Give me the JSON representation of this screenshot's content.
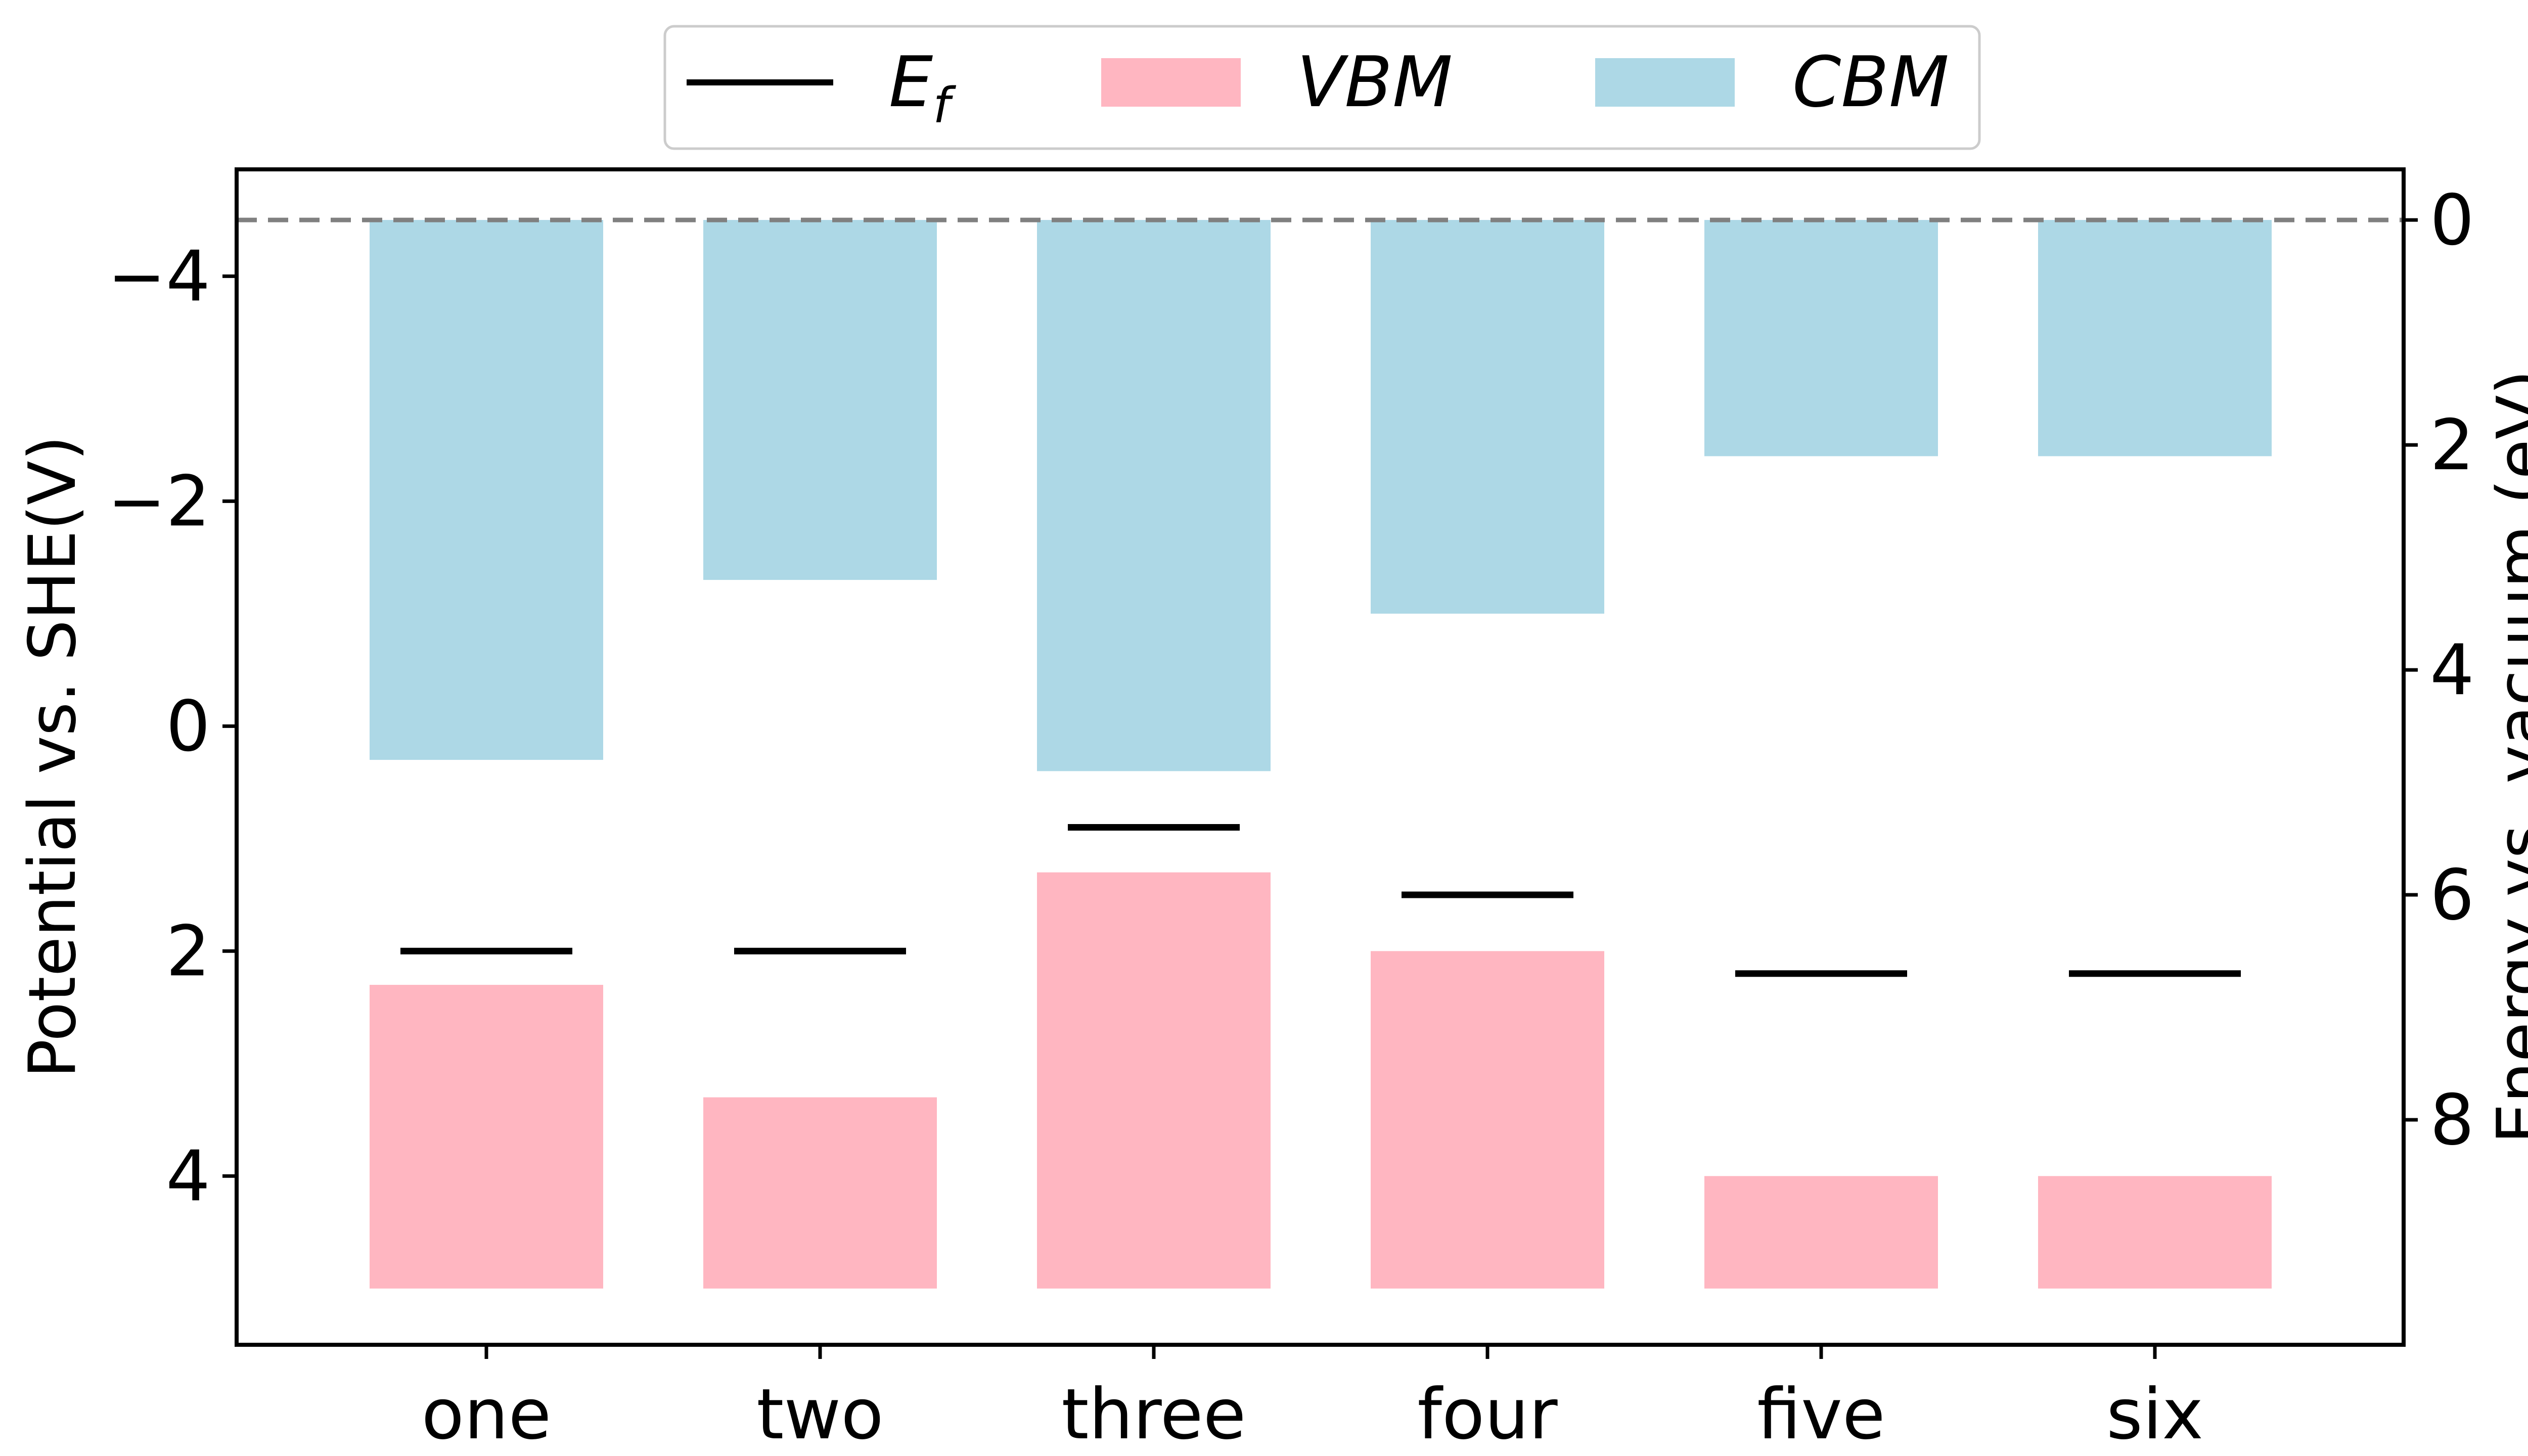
{
  "chart_data": {
    "type": "bar",
    "categories": [
      "one",
      "two",
      "three",
      "four",
      "five",
      "six"
    ],
    "series": [
      {
        "name": "CBM",
        "color": "#add8e6",
        "bottom": [
          0.3,
          -1.3,
          0.4,
          -1.0,
          -2.4,
          -2.4
        ],
        "top": -4.5
      },
      {
        "name": "VBM",
        "color": "#ffb6c1",
        "top": [
          2.3,
          3.3,
          1.3,
          2.0,
          4.0,
          4.0
        ],
        "bottom": 5.0
      },
      {
        "name": "E_f",
        "color": "#000000",
        "values": [
          2.0,
          2.0,
          0.9,
          1.5,
          2.2,
          2.2
        ]
      }
    ],
    "legend": {
      "items": [
        "E_f",
        "VBM",
        "CBM"
      ],
      "placement": "top-center"
    },
    "ylabel": "Potential vs. SHE(V)",
    "ylabel_right": "Energy vs. vacuum (eV)",
    "ylim": [
      5.5,
      -4.95
    ],
    "yticks": [
      -4,
      -2,
      0,
      2,
      4
    ],
    "ytick_labels": [
      "−4",
      "−2",
      "0",
      "2",
      "4"
    ],
    "yticks_right": [
      0,
      2,
      4,
      6,
      8
    ],
    "ytick_labels_right": [
      "0",
      "2",
      "4",
      "6",
      "8"
    ],
    "vacuum_offset": -4.5,
    "reference_line": {
      "value": -4.5,
      "style": "dashed",
      "color": "#808080"
    },
    "grid": false
  }
}
